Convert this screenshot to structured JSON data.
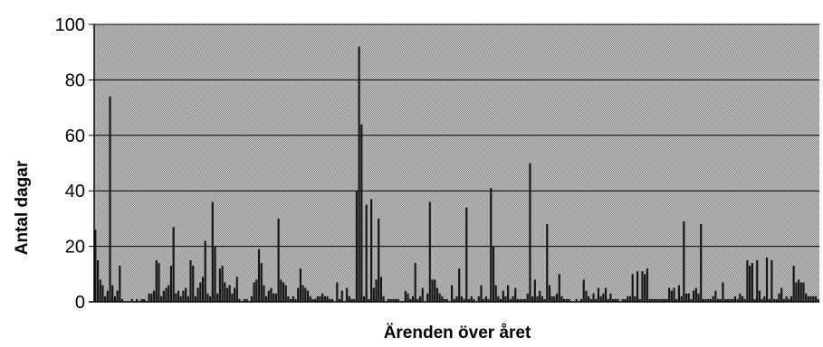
{
  "chart_data": {
    "type": "bar",
    "title": "",
    "xlabel": "Ärenden över året",
    "ylabel": "Antal dagar",
    "ylim": [
      0,
      100
    ],
    "yticks": [
      0,
      20,
      40,
      60,
      80,
      100
    ],
    "grid": true,
    "legend": "none",
    "colors": {
      "plot_background": "#a9a9a9",
      "bar": "#141414",
      "gridline": "#000000"
    },
    "values": [
      26,
      15,
      8,
      6,
      2,
      4,
      74,
      6,
      2,
      4,
      13,
      1,
      0,
      0,
      0,
      1,
      0,
      1,
      0,
      1,
      1,
      0,
      3,
      3,
      4,
      15,
      14,
      2,
      4,
      5,
      6,
      13,
      27,
      3,
      4,
      2,
      4,
      5,
      2,
      15,
      13,
      2,
      5,
      7,
      9,
      22,
      3,
      2,
      36,
      20,
      3,
      12,
      13,
      7,
      5,
      6,
      3,
      5,
      9,
      1,
      0,
      1,
      1,
      0,
      2,
      7,
      8,
      19,
      14,
      6,
      2,
      4,
      5,
      3,
      3,
      30,
      8,
      7,
      6,
      2,
      1,
      2,
      1,
      5,
      12,
      6,
      5,
      4,
      2,
      1,
      1,
      2,
      2,
      3,
      2,
      2,
      1,
      1,
      0,
      7,
      1,
      4,
      0,
      5,
      2,
      1,
      1,
      40,
      92,
      64,
      2,
      35,
      1,
      37,
      5,
      8,
      30,
      9,
      2,
      0,
      1,
      1,
      1,
      1,
      1,
      0,
      0,
      4,
      3,
      1,
      2,
      14,
      1,
      2,
      5,
      0,
      3,
      36,
      8,
      8,
      5,
      3,
      2,
      1,
      1,
      0,
      6,
      1,
      2,
      12,
      2,
      1,
      34,
      1,
      2,
      1,
      0,
      2,
      6,
      1,
      2,
      1,
      41,
      20,
      6,
      2,
      1,
      4,
      2,
      6,
      1,
      2,
      5,
      1,
      1,
      1,
      1,
      3,
      50,
      2,
      8,
      2,
      4,
      2,
      1,
      28,
      6,
      2,
      2,
      3,
      10,
      2,
      1,
      1,
      1,
      0,
      0,
      1,
      0,
      1,
      8,
      4,
      2,
      1,
      3,
      1,
      5,
      2,
      3,
      5,
      1,
      3,
      1,
      1,
      1,
      0,
      1,
      1,
      2,
      2,
      10,
      2,
      11,
      1,
      11,
      10,
      12,
      1,
      1,
      1,
      1,
      1,
      1,
      1,
      1,
      5,
      4,
      5,
      1,
      6,
      2,
      29,
      3,
      3,
      1,
      4,
      5,
      3,
      28,
      1,
      1,
      1,
      1,
      2,
      4,
      1,
      1,
      7,
      1,
      1,
      1,
      1,
      2,
      1,
      3,
      2,
      1,
      15,
      13,
      14,
      1,
      15,
      4,
      1,
      2,
      16,
      1,
      15,
      1,
      1,
      3,
      5,
      1,
      2,
      1,
      2,
      13,
      7,
      8,
      7,
      7,
      3,
      2,
      2,
      2,
      2,
      1
    ]
  }
}
